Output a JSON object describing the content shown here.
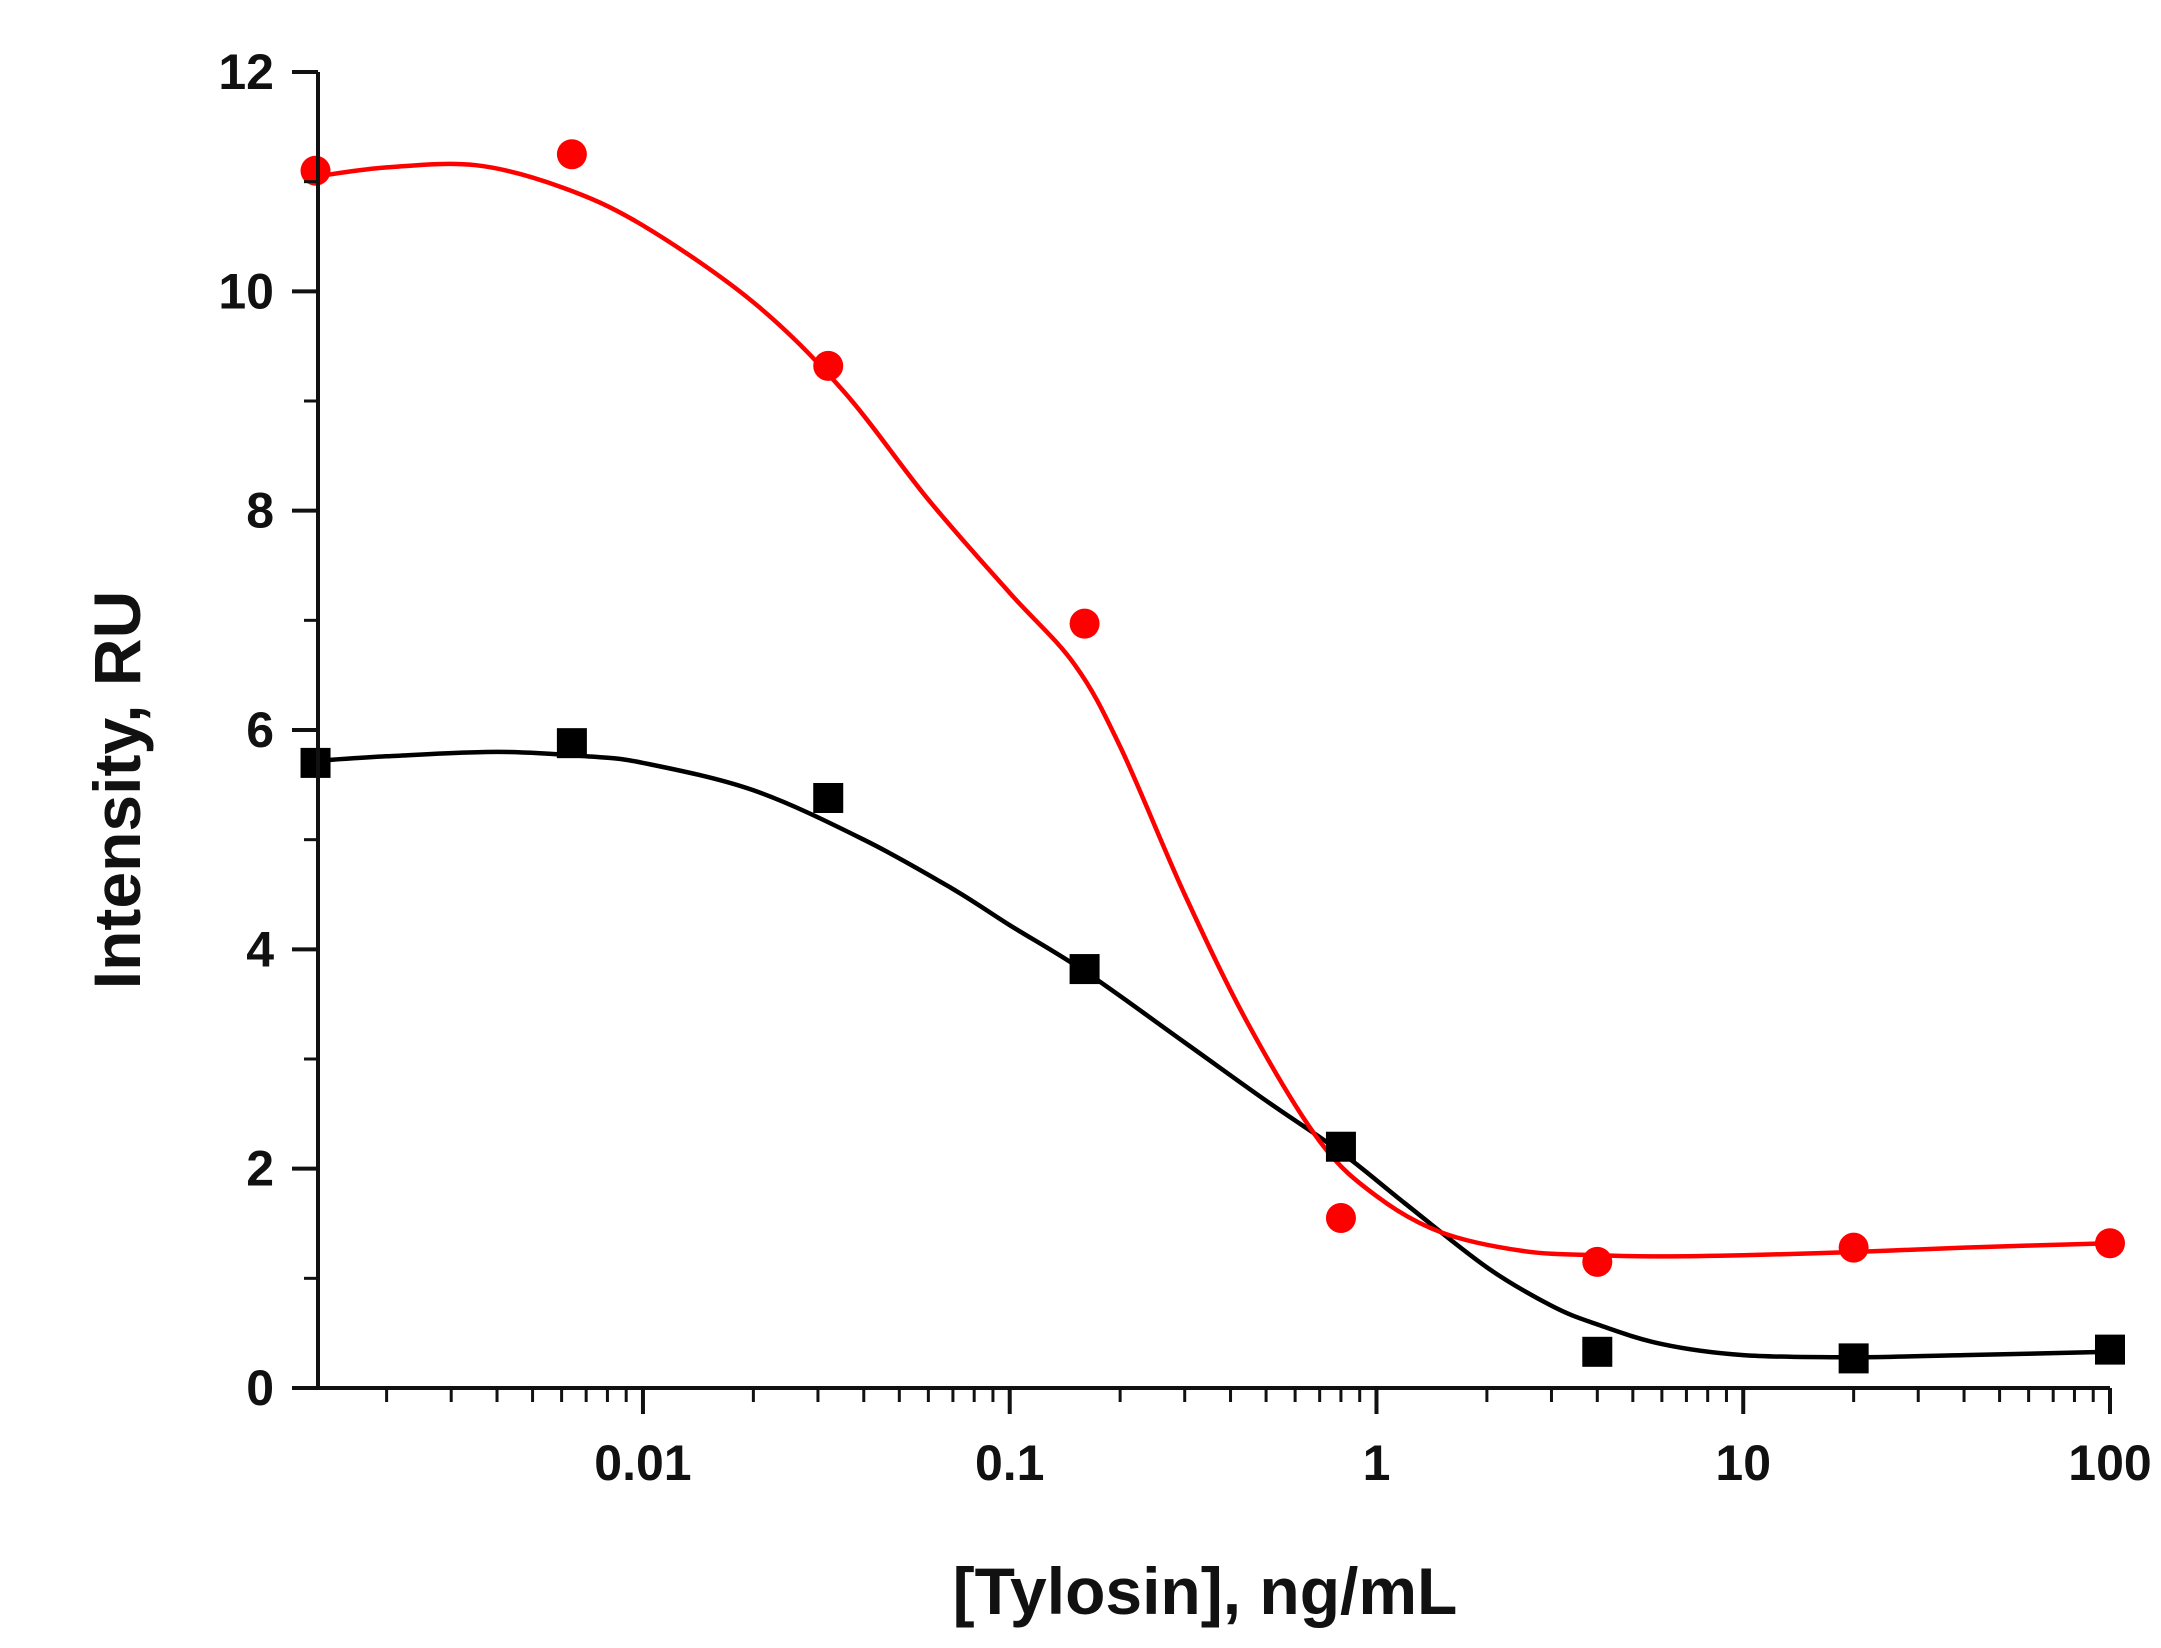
{
  "chart_data": {
    "type": "scatter",
    "title": "",
    "xlabel": "[Tylosin], ng/mL",
    "ylabel": "Intensity, RU",
    "xscale": "log",
    "xlim": [
      0.0013,
      100
    ],
    "ylim": [
      0,
      12
    ],
    "grid": false,
    "legend": "none",
    "x_ticks": [
      {
        "value": 0.01,
        "label": "0.01"
      },
      {
        "value": 0.1,
        "label": "0.1"
      },
      {
        "value": 1,
        "label": "1"
      },
      {
        "value": 10,
        "label": "10"
      },
      {
        "value": 100,
        "label": "100"
      }
    ],
    "y_ticks": [
      {
        "value": 0,
        "label": "0"
      },
      {
        "value": 2,
        "label": "2"
      },
      {
        "value": 4,
        "label": "4"
      },
      {
        "value": 6,
        "label": "6"
      },
      {
        "value": 8,
        "label": "8"
      },
      {
        "value": 10,
        "label": "10"
      },
      {
        "value": 12,
        "label": "12"
      }
    ],
    "series": [
      {
        "marker": "circle",
        "color": "#ff0000",
        "x": [
          0.00128,
          0.0064,
          0.032,
          0.16,
          0.8,
          4,
          20,
          100
        ],
        "y": [
          11.1,
          11.25,
          9.32,
          6.97,
          1.55,
          1.15,
          1.28,
          1.32
        ],
        "fit_x": [
          0.0013,
          0.002,
          0.0035,
          0.006,
          0.01,
          0.02,
          0.035,
          0.06,
          0.1,
          0.15,
          0.2,
          0.3,
          0.45,
          0.7,
          1,
          1.5,
          2.5,
          4,
          6,
          10,
          20,
          40,
          100
        ],
        "fit_y": [
          11.05,
          11.13,
          11.15,
          10.95,
          10.6,
          9.9,
          9.1,
          8.1,
          7.25,
          6.6,
          5.85,
          4.5,
          3.3,
          2.25,
          1.75,
          1.42,
          1.25,
          1.21,
          1.2,
          1.21,
          1.24,
          1.28,
          1.32
        ]
      },
      {
        "marker": "square",
        "color": "#000000",
        "x": [
          0.00128,
          0.0064,
          0.032,
          0.16,
          0.8,
          4,
          20,
          100
        ],
        "y": [
          5.7,
          5.88,
          5.38,
          3.82,
          2.2,
          0.33,
          0.27,
          0.35
        ],
        "fit_x": [
          0.0013,
          0.002,
          0.004,
          0.007,
          0.01,
          0.02,
          0.04,
          0.07,
          0.1,
          0.16,
          0.3,
          0.5,
          0.8,
          1.2,
          2,
          3,
          4,
          6,
          10,
          20,
          40,
          100
        ],
        "fit_y": [
          5.72,
          5.76,
          5.8,
          5.76,
          5.7,
          5.45,
          5.0,
          4.55,
          4.22,
          3.8,
          3.15,
          2.62,
          2.15,
          1.68,
          1.1,
          0.75,
          0.58,
          0.4,
          0.3,
          0.28,
          0.3,
          0.33
        ]
      }
    ]
  }
}
